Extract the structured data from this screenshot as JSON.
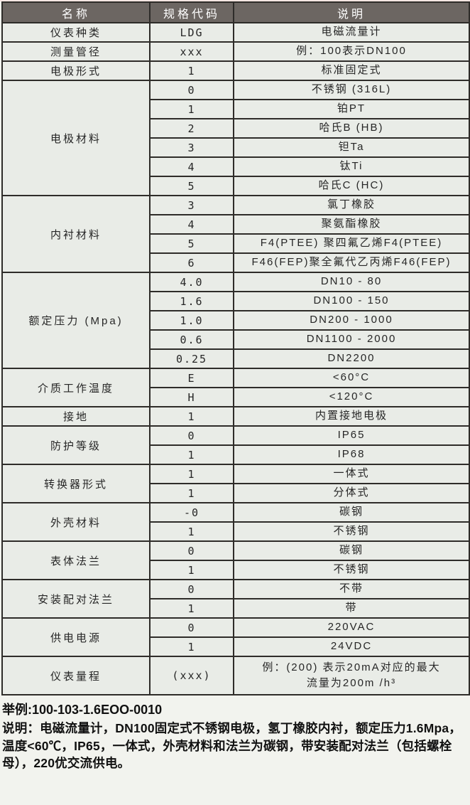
{
  "colors": {
    "header_bg": "#6c6662",
    "header_text": "#ffffff",
    "cell_bg": "#e9ece7",
    "border": "#2e2c29",
    "page_bg": "#f2f3ee",
    "top_strip": "#f8e6e2",
    "footer_text": "#111111"
  },
  "table": {
    "headers": [
      "名称",
      "规格代码",
      "说明"
    ],
    "groups": [
      {
        "name": "仪表种类",
        "rows": [
          {
            "code": "LDG",
            "desc": "电磁流量计"
          }
        ]
      },
      {
        "name": "测量管径",
        "rows": [
          {
            "code": "xxx",
            "desc": "例：100表示DN100"
          }
        ]
      },
      {
        "name": "电极形式",
        "rows": [
          {
            "code": "1",
            "desc": "标准固定式"
          }
        ]
      },
      {
        "name": "电极材料",
        "rows": [
          {
            "code": "0",
            "desc": "不锈钢 (316L)"
          },
          {
            "code": "1",
            "desc": "铂PT"
          },
          {
            "code": "2",
            "desc": "哈氏B (HB)"
          },
          {
            "code": "3",
            "desc": "钽Ta"
          },
          {
            "code": "4",
            "desc": "钛Ti"
          },
          {
            "code": "5",
            "desc": "哈氏C (HC)"
          }
        ]
      },
      {
        "name": "内衬材料",
        "rows": [
          {
            "code": "3",
            "desc": "氯丁橡胶"
          },
          {
            "code": "4",
            "desc": "聚氨酯橡胶"
          },
          {
            "code": "5",
            "desc": "F4(PTEE) 聚四氟乙烯F4(PTEE)"
          },
          {
            "code": "6",
            "desc": "F46(FEP)聚全氟代乙丙烯F46(FEP)"
          }
        ]
      },
      {
        "name": "额定压力 (Mpa)",
        "rows": [
          {
            "code": "4.0",
            "desc": "DN10 - 80"
          },
          {
            "code": "1.6",
            "desc": "DN100 - 150"
          },
          {
            "code": "1.0",
            "desc": "DN200 - 1000"
          },
          {
            "code": "0.6",
            "desc": "DN1100 - 2000"
          },
          {
            "code": "0.25",
            "desc": "DN2200"
          }
        ]
      },
      {
        "name": "介质工作温度",
        "rows": [
          {
            "code": "E",
            "desc": "<60°C"
          },
          {
            "code": "H",
            "desc": "<120°C"
          }
        ]
      },
      {
        "name": "接地",
        "rows": [
          {
            "code": "1",
            "desc": "内置接地电极"
          }
        ]
      },
      {
        "name": "防护等级",
        "rows": [
          {
            "code": "0",
            "desc": "IP65"
          },
          {
            "code": "1",
            "desc": "IP68"
          }
        ]
      },
      {
        "name": "转换器形式",
        "rows": [
          {
            "code": "1",
            "desc": "一体式"
          },
          {
            "code": "1",
            "desc": "分体式"
          }
        ]
      },
      {
        "name": "外壳材料",
        "rows": [
          {
            "code": "-0",
            "desc": "碳钢"
          },
          {
            "code": "1",
            "desc": "不锈钢"
          }
        ]
      },
      {
        "name": "表体法兰",
        "rows": [
          {
            "code": "0",
            "desc": "碳钢"
          },
          {
            "code": "1",
            "desc": "不锈钢"
          }
        ]
      },
      {
        "name": "安装配对法兰",
        "rows": [
          {
            "code": "0",
            "desc": "不带"
          },
          {
            "code": "1",
            "desc": "带"
          }
        ]
      },
      {
        "name": "供电电源",
        "rows": [
          {
            "code": "0",
            "desc": "220VAC"
          },
          {
            "code": "1",
            "desc": "24VDC"
          }
        ]
      },
      {
        "name": "仪表量程",
        "tall": true,
        "rows": [
          {
            "code": "(xxx)",
            "desc": "例：(200) 表示20mA对应的最大\n流量为200m /h³"
          }
        ]
      }
    ]
  },
  "footer": {
    "example_line": "举例:100-103-1.6EOO-0010",
    "description_line": "说明：电磁流量计，DN100固定式不锈钢电极，氢丁橡胶内衬，额定压力1.6Mpa，温度<60℃，IP65，一体式，外壳材料和法兰为碳钢，带安装配对法兰（包括螺栓母），220优交流供电。"
  }
}
